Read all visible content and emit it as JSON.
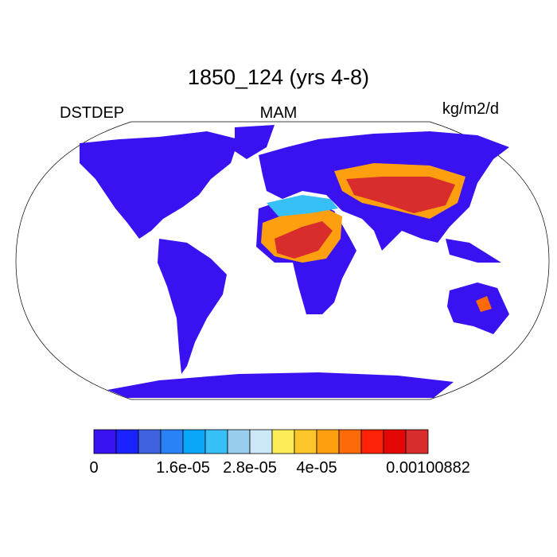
{
  "title": "1850_124 (yrs 4-8)",
  "labels": {
    "left": "DSTDEP",
    "center": "MAM",
    "right": "kg/m2/d"
  },
  "colorbar": {
    "colors": [
      "#3a12f2",
      "#1a22ff",
      "#3f63e0",
      "#2a82f7",
      "#0aa6fa",
      "#36c0f7",
      "#98cdee",
      "#cce8f8",
      "#fdec58",
      "#fdc62a",
      "#fd9f0e",
      "#fd6a0a",
      "#fd2208",
      "#e50606",
      "#d92c2c"
    ],
    "tick_labels": [
      "0",
      "1.6e-05",
      "2.8e-05",
      "4e-05",
      "0.00100882"
    ]
  }
}
